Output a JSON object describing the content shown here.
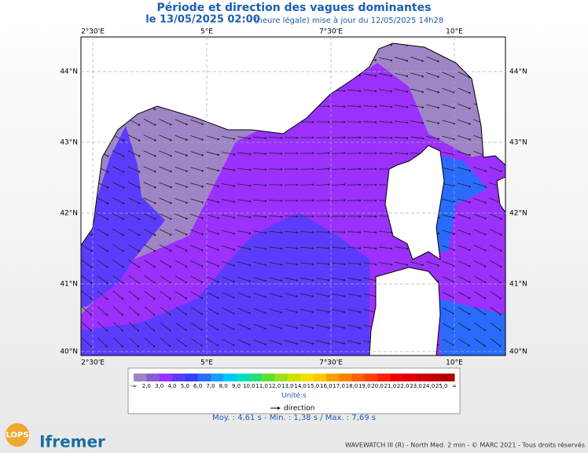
{
  "header": {
    "title": "Période et direction des vagues dominantes",
    "date": "le 13/05/2025 02:00",
    "note": "(heure légale) mise à jour du 12/05/2025 14h28"
  },
  "longitudes": [
    "2°30'E",
    "5°E",
    "7°30'E",
    "10°E"
  ],
  "latitudes": [
    "44°N",
    "43°N",
    "42°N",
    "41°N",
    "40°N"
  ],
  "colorbar": {
    "labels": [
      "-∞",
      "2,0",
      "3,0",
      "4,0",
      "5,0",
      "6,0",
      "7,0",
      "8,0",
      "9,0",
      "10,0",
      "11,0",
      "12,0",
      "13,0",
      "14,0",
      "15,0",
      "16,0",
      "17,0",
      "18,0",
      "19,0",
      "20,0",
      "21,0",
      "22,0",
      "23,0",
      "24,0",
      "25,0",
      "∞"
    ],
    "unit": "Unité:s"
  },
  "legend": {
    "direction": "direction"
  },
  "stats": "Moy. : 4,61 s   -   Min. : 1,38 s / Max. : 7,69 s",
  "logos": {
    "left": "LOPS",
    "right": "Ifremer"
  },
  "footer": "WAVEWATCH III (R) - North Med. 2 min - © MARC 2021 - Tous droits réservés"
}
